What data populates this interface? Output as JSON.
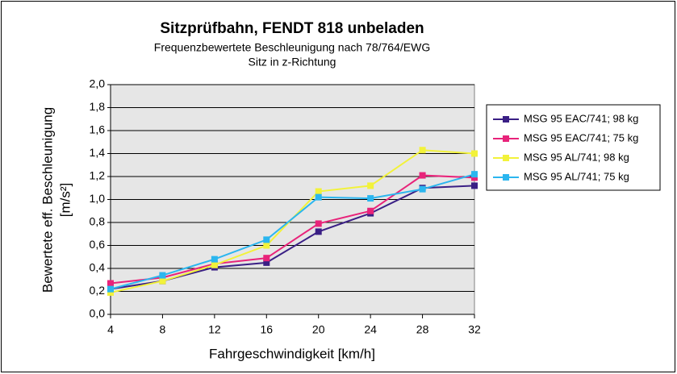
{
  "chart_data": {
    "type": "line",
    "title": "Sitzprüfbahn, FENDT 818 unbeladen",
    "subtitle": [
      "Frequenzbewertete Beschleunigung nach 78/764/EWG",
      "Sitz in z-Richtung"
    ],
    "x_label": "Fahrgeschwindigkeit [km/h]",
    "y_label": [
      "Bewertete eff. Beschleunigung",
      "[m/s²]"
    ],
    "x": [
      4,
      8,
      12,
      16,
      20,
      24,
      28,
      32
    ],
    "xlim": [
      4,
      32
    ],
    "xticks": [
      4,
      8,
      12,
      16,
      20,
      24,
      28,
      32
    ],
    "ylim": [
      0,
      2
    ],
    "yticks": [
      {
        "value": 0,
        "label": "0,0"
      },
      {
        "value": 0.2,
        "label": "0,2"
      },
      {
        "value": 0.4,
        "label": "0,4"
      },
      {
        "value": 0.6,
        "label": "0,6"
      },
      {
        "value": 0.8,
        "label": "0,8"
      },
      {
        "value": 1.0,
        "label": "1,0"
      },
      {
        "value": 1.2,
        "label": "1,2"
      },
      {
        "value": 1.4,
        "label": "1,4"
      },
      {
        "value": 1.6,
        "label": "1,6"
      },
      {
        "value": 1.8,
        "label": "1,8"
      },
      {
        "value": 2.0,
        "label": "2,0"
      }
    ],
    "grid": true,
    "legend": "right",
    "series": [
      {
        "name": "MSG 95 EAC/741; 98 kg",
        "color": "#3a1f85",
        "values": [
          0.22,
          0.29,
          0.41,
          0.45,
          0.72,
          0.88,
          1.1,
          1.12
        ]
      },
      {
        "name": "MSG 95 EAC/741; 75 kg",
        "color": "#e8237a",
        "values": [
          0.27,
          0.32,
          0.44,
          0.49,
          0.79,
          0.9,
          1.21,
          1.19
        ]
      },
      {
        "name": "MSG 95 AL/741; 98 kg",
        "color": "#f2f23a",
        "values": [
          0.19,
          0.29,
          0.43,
          0.6,
          1.07,
          1.12,
          1.43,
          1.4
        ]
      },
      {
        "name": "MSG 95 AL/741; 75 kg",
        "color": "#2bb6ef",
        "values": [
          0.22,
          0.34,
          0.48,
          0.65,
          1.02,
          1.01,
          1.09,
          1.22
        ]
      }
    ]
  }
}
